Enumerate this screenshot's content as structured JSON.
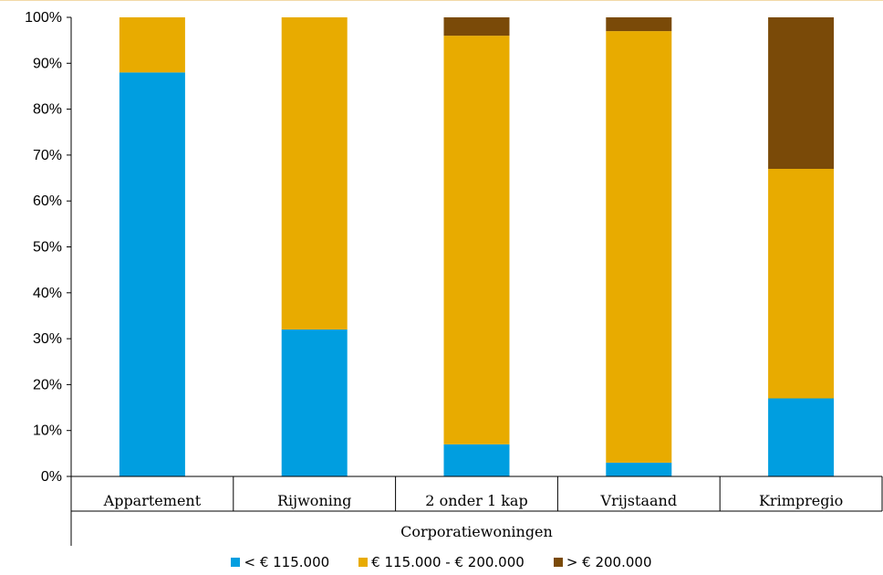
{
  "chart_data": {
    "type": "bar",
    "stacked": true,
    "categories": [
      "Appartement",
      "Rijwoning",
      "2 onder 1 kap",
      "Vrijstaand",
      "Krimpregio"
    ],
    "group_label": "Corporatiewoningen",
    "series": [
      {
        "name": "< € 115.000",
        "color": "#009EE0",
        "values": [
          88,
          32,
          7,
          3,
          17
        ]
      },
      {
        "name": "€ 115.000 - € 200.000",
        "color": "#E8AB00",
        "values": [
          12,
          68,
          89,
          94,
          50
        ]
      },
      {
        "name": "> € 200.000",
        "color": "#7A4A08",
        "values": [
          0,
          0,
          4,
          3,
          33
        ]
      }
    ],
    "y_ticks": [
      "0%",
      "10%",
      "20%",
      "30%",
      "40%",
      "50%",
      "60%",
      "70%",
      "80%",
      "90%",
      "100%"
    ],
    "ylim": [
      0,
      100
    ],
    "grid": false,
    "legend_position": "bottom"
  }
}
